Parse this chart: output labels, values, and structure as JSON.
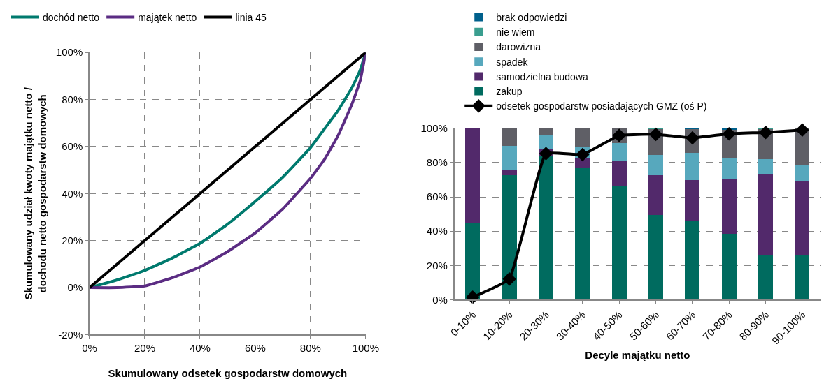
{
  "chart_data": [
    {
      "type": "line",
      "xlabel": "Skumulowany odsetek gospodarstw domowych",
      "ylabel": "Skumulowany udział kwoty majątku netto /\ndochodu netto gospodarstw domowych",
      "xlim": [
        0,
        100
      ],
      "xticks": [
        {
          "value": 0,
          "label": "0%"
        },
        {
          "value": 20,
          "label": "20%"
        },
        {
          "value": 40,
          "label": "40%"
        },
        {
          "value": 60,
          "label": "60%"
        },
        {
          "value": 80,
          "label": "80%"
        },
        {
          "value": 100,
          "label": "100%"
        }
      ],
      "ylim": [
        -20,
        100
      ],
      "yticks": [
        {
          "value": -20,
          "label": "-20%"
        },
        {
          "value": 0,
          "label": "0%"
        },
        {
          "value": 20,
          "label": "20%"
        },
        {
          "value": 40,
          "label": "40%"
        },
        {
          "value": 60,
          "label": "60%"
        },
        {
          "value": 80,
          "label": "80%"
        },
        {
          "value": 100,
          "label": "100%"
        }
      ],
      "grid": true,
      "legend": "top",
      "line_style": "solid",
      "marker": "none",
      "series": [
        {
          "name": "dochód netto",
          "color": "#007a6e",
          "x": [
            0,
            10,
            20,
            30,
            40,
            50,
            60,
            70,
            80,
            85,
            90,
            95,
            98,
            100
          ],
          "values": [
            0,
            3.3,
            7.3,
            12.6,
            18.8,
            27,
            36.7,
            47,
            59.5,
            67.4,
            75.3,
            85,
            92.5,
            100
          ]
        },
        {
          "name": "majątek netto",
          "color": "#5b2c83",
          "x": [
            0,
            10,
            20,
            30,
            40,
            50,
            60,
            70,
            80,
            85,
            90,
            95,
            98,
            100
          ],
          "values": [
            0,
            0,
            0.7,
            4.2,
            8.8,
            15.3,
            23.3,
            33.5,
            46.5,
            54.4,
            64.7,
            78,
            88,
            100
          ]
        },
        {
          "name": "linia 45",
          "color": "#000000",
          "x": [
            0,
            100
          ],
          "values": [
            0,
            100
          ]
        }
      ]
    },
    {
      "type": "bar",
      "stacked": true,
      "xlabel": "Decyle majątku netto",
      "categories": [
        "0-10%",
        "10-20%",
        "20-30%",
        "30-40%",
        "40-50%",
        "50-60%",
        "60-70%",
        "70-80%",
        "80-90%",
        "90-100%"
      ],
      "ylim": [
        0,
        100
      ],
      "yticks": [
        {
          "value": 0,
          "label": "0%"
        },
        {
          "value": 20,
          "label": "20%"
        },
        {
          "value": 40,
          "label": "40%"
        },
        {
          "value": 60,
          "label": "60%"
        },
        {
          "value": 80,
          "label": "80%"
        },
        {
          "value": 100,
          "label": "100%"
        }
      ],
      "grid": "y",
      "legend": "top",
      "series": [
        {
          "name": "zakup",
          "color": "#006b5f",
          "values": [
            45,
            72.5,
            84,
            77,
            66.1,
            49.6,
            45.6,
            38.4,
            25.7,
            26.4
          ]
        },
        {
          "name": "samodzielna budowa",
          "color": "#52296b",
          "values": [
            55,
            3.2,
            3.8,
            5.9,
            15,
            22.9,
            24,
            32.3,
            47.4,
            42.5
          ]
        },
        {
          "name": "spadek",
          "color": "#57a8bd",
          "values": [
            0,
            14.1,
            8,
            6.3,
            10.3,
            12.1,
            16.1,
            12.2,
            8.9,
            9.6
          ]
        },
        {
          "name": "darowizna",
          "color": "#5f5f66",
          "values": [
            0,
            10.2,
            4.2,
            10.8,
            8.6,
            15.1,
            13.9,
            16,
            17.6,
            21.5
          ]
        },
        {
          "name": "nie wiem",
          "color": "#3a9e8f",
          "values": [
            0,
            0,
            0,
            0,
            0,
            0.3,
            0,
            0,
            0.4,
            0
          ]
        },
        {
          "name": "brak odpowiedzi",
          "color": "#00608c",
          "values": [
            0,
            0,
            0,
            0,
            0,
            0,
            0.4,
            1,
            0,
            0
          ]
        },
        {
          "name": "odsetek gospodarstw posiadających GMZ (oś P)",
          "type": "line",
          "color": "#000000",
          "marker": "diamond",
          "values": [
            1.5,
            12.1,
            85.3,
            84.6,
            95.8,
            96.5,
            94.4,
            96.8,
            97.6,
            99
          ]
        }
      ]
    }
  ]
}
